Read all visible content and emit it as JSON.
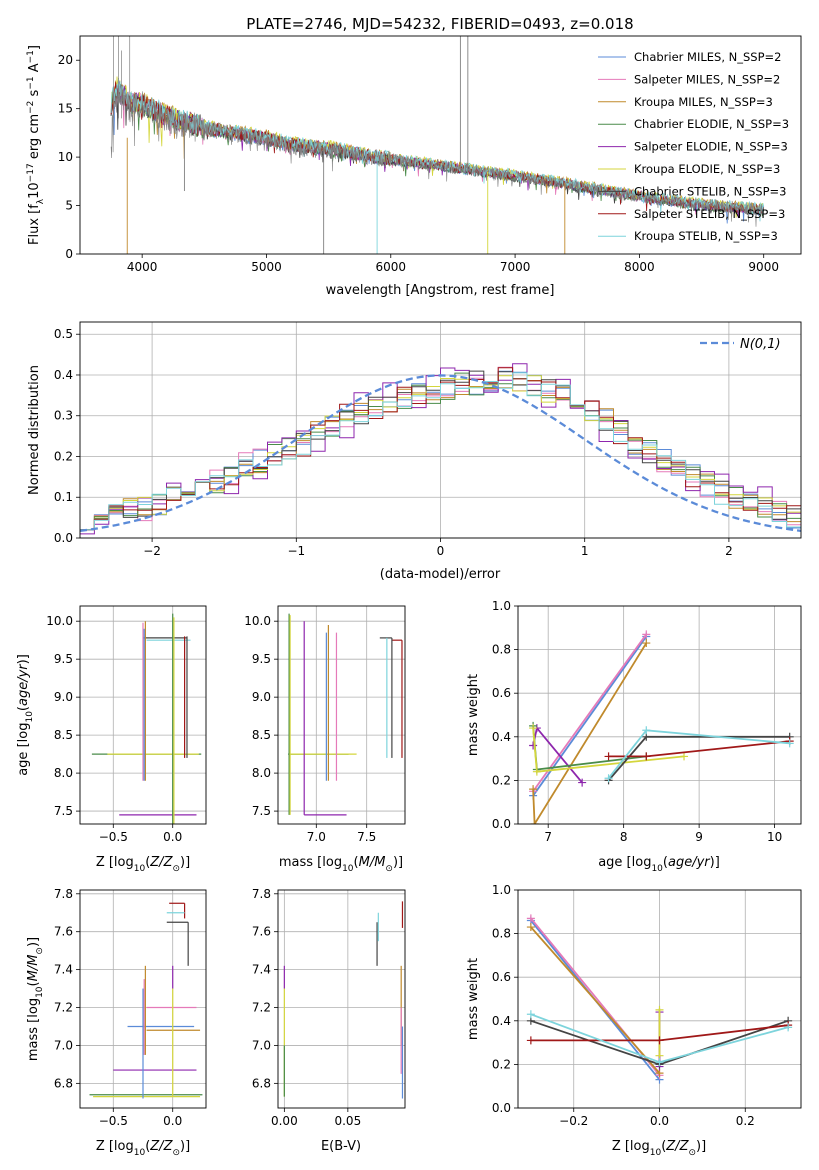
{
  "colors": {
    "grid": "#b0b0b0",
    "gaussian": "#5b8bd8"
  },
  "chart_data": [
    {
      "id": "spectrum",
      "type": "line",
      "title": "PLATE=2746, MJD=54232, FIBERID=0493, z=0.018",
      "xlabel": "wavelength [Angstrom, rest frame]",
      "ylabel": "Flux [f_λ 10^-17 erg cm^-2 s^-1 A^-1]",
      "xlim": [
        3500,
        9300
      ],
      "ylim": [
        0,
        22.5
      ],
      "xticks": [
        4000,
        5000,
        6000,
        7000,
        8000,
        9000
      ],
      "yticks": [
        0,
        5,
        10,
        15,
        20
      ],
      "grid": false,
      "legend_position": "upper right",
      "observed_spectrum": {
        "color": "#808080",
        "x": [
          3750,
          3800,
          3850,
          3900,
          4000,
          4100,
          4200,
          4300,
          4500,
          4700,
          5000,
          5200,
          5500,
          5800,
          6000,
          6300,
          6600,
          7000,
          7400,
          7800,
          8200,
          8600,
          9000
        ],
        "y": [
          12.5,
          16.5,
          16.0,
          15.0,
          15.5,
          14.5,
          14.0,
          13.5,
          13.0,
          12.5,
          11.8,
          11.0,
          10.8,
          10.0,
          9.8,
          9.2,
          8.8,
          8.0,
          7.2,
          6.3,
          5.5,
          5.0,
          4.6
        ]
      },
      "series": [
        {
          "name": "Chabrier MILES, N_SSP=2",
          "color": "#5b8bd8"
        },
        {
          "name": "Salpeter MILES, N_SSP=2",
          "color": "#e57ab9"
        },
        {
          "name": "Kroupa MILES, N_SSP=3",
          "color": "#c08a2c"
        },
        {
          "name": "Chabrier ELODIE, N_SSP=3",
          "color": "#4a8c4a"
        },
        {
          "name": "Salpeter ELODIE, N_SSP=3",
          "color": "#8e26ad"
        },
        {
          "name": "Kroupa ELODIE, N_SSP=3",
          "color": "#d4d63c"
        },
        {
          "name": "Chabrier STELIB, N_SSP=3",
          "color": "#444444"
        },
        {
          "name": "Salpeter STELIB, N_SSP=3",
          "color": "#a01818"
        },
        {
          "name": "Kroupa STELIB, N_SSP=3",
          "color": "#7dd4dc"
        }
      ],
      "model_curve": {
        "x": [
          3750,
          3800,
          3850,
          3900,
          4000,
          4100,
          4200,
          4300,
          4500,
          4700,
          5000,
          5200,
          5500,
          5800,
          6000,
          6300,
          6600,
          7000,
          7400,
          7800,
          8200,
          8600,
          9000
        ],
        "y": [
          15.5,
          17.2,
          16.5,
          15.6,
          15.6,
          14.8,
          14.3,
          13.8,
          13.1,
          12.6,
          12.0,
          11.3,
          10.9,
          10.2,
          9.8,
          9.3,
          8.8,
          8.1,
          7.3,
          6.4,
          5.6,
          5.0,
          4.6
        ]
      }
    },
    {
      "id": "residuals",
      "type": "line",
      "title": "",
      "xlabel": "(data-model)/error",
      "ylabel": "Normed distribution",
      "xlim": [
        -2.5,
        2.5
      ],
      "ylim": [
        0,
        0.53
      ],
      "xticks": [
        -2,
        -1,
        0,
        1,
        2
      ],
      "yticks": [
        0.0,
        0.1,
        0.2,
        0.3,
        0.4,
        0.5
      ],
      "grid": true,
      "legend_position": "upper right",
      "gaussian_label": "N(0,1)",
      "bin_width": 0.1,
      "bin_start": -2.5,
      "base_hist": [
        0.05,
        0.07,
        0.07,
        0.07,
        0.07,
        0.08,
        0.11,
        0.11,
        0.13,
        0.14,
        0.16,
        0.18,
        0.19,
        0.2,
        0.22,
        0.23,
        0.26,
        0.28,
        0.3,
        0.31,
        0.32,
        0.33,
        0.34,
        0.35,
        0.36,
        0.37,
        0.38,
        0.38,
        0.39,
        0.39,
        0.38,
        0.37,
        0.36,
        0.35,
        0.33,
        0.31,
        0.29,
        0.26,
        0.23,
        0.21,
        0.19,
        0.17,
        0.15,
        0.13,
        0.11,
        0.1,
        0.09,
        0.08,
        0.06,
        0.05
      ]
    },
    {
      "id": "age-vs-Z",
      "type": "scatter",
      "title": "",
      "xlabel": "Z [log10(Z/Z⊙)]",
      "ylabel": "age [log10(age/yr)]",
      "xlim": [
        -0.78,
        0.28
      ],
      "ylim": [
        7.33,
        10.2
      ],
      "xticks": [
        -0.5,
        0.0
      ],
      "yticks": [
        7.5,
        8.0,
        8.5,
        9.0,
        9.5,
        10.0
      ],
      "grid": true,
      "segments": [
        {
          "c": "#8e26ad",
          "x": [
            -0.45,
            0.2
          ],
          "y": [
            7.45,
            7.45
          ]
        },
        {
          "c": "#4a8c4a",
          "x": [
            -0.68,
            0.24
          ],
          "y": [
            8.25,
            8.25
          ]
        },
        {
          "c": "#d4d63c",
          "x": [
            -0.55,
            0.22
          ],
          "y": [
            8.25,
            8.25
          ]
        },
        {
          "c": "#444444",
          "x": [
            -0.25,
            0.12
          ],
          "y": [
            9.78,
            9.78
          ]
        },
        {
          "c": "#7dd4dc",
          "x": [
            -0.22,
            0.15
          ],
          "y": [
            9.75,
            9.75
          ]
        },
        {
          "c": "#a01818",
          "x": [
            0.1,
            0.1
          ],
          "y": [
            8.2,
            9.8
          ]
        },
        {
          "c": "#444444",
          "x": [
            0.12,
            0.12
          ],
          "y": [
            8.2,
            9.8
          ]
        },
        {
          "c": "#e57ab9",
          "x": [
            -0.25,
            -0.25
          ],
          "y": [
            7.9,
            9.98
          ]
        },
        {
          "c": "#c08a2c",
          "x": [
            -0.23,
            -0.23
          ],
          "y": [
            7.9,
            10.0
          ]
        },
        {
          "c": "#5b8bd8",
          "x": [
            -0.24,
            -0.24
          ],
          "y": [
            7.9,
            9.9
          ]
        },
        {
          "c": "#4a8c4a",
          "x": [
            0.0,
            0.0
          ],
          "y": [
            7.33,
            10.1
          ]
        },
        {
          "c": "#d4d63c",
          "x": [
            0.01,
            0.01
          ],
          "y": [
            7.33,
            10.05
          ]
        }
      ]
    },
    {
      "id": "age-vs-mass",
      "type": "scatter",
      "title": "",
      "xlabel": "mass [log10(M/M⊙)]",
      "ylabel": "",
      "xlim": [
        6.62,
        7.88
      ],
      "ylim": [
        7.33,
        10.2
      ],
      "xticks": [
        7.0,
        7.5
      ],
      "yticks": [
        7.5,
        8.0,
        8.5,
        9.0,
        9.5,
        10.0
      ],
      "grid": true,
      "segments": [
        {
          "c": "#8e26ad",
          "x": [
            6.88,
            7.3
          ],
          "y": [
            7.45,
            7.45
          ]
        },
        {
          "c": "#4a8c4a",
          "x": [
            6.72,
            7.32
          ],
          "y": [
            8.25,
            8.25
          ]
        },
        {
          "c": "#d4d63c",
          "x": [
            6.73,
            7.4
          ],
          "y": [
            8.25,
            8.25
          ]
        },
        {
          "c": "#444444",
          "x": [
            7.63,
            7.75
          ],
          "y": [
            9.78,
            9.78
          ]
        },
        {
          "c": "#a01818",
          "x": [
            7.75,
            7.85
          ],
          "y": [
            9.75,
            9.75
          ]
        },
        {
          "c": "#a01818",
          "x": [
            7.85,
            7.85
          ],
          "y": [
            8.2,
            9.75
          ]
        },
        {
          "c": "#444444",
          "x": [
            7.75,
            7.75
          ],
          "y": [
            8.2,
            9.78
          ]
        },
        {
          "c": "#7dd4dc",
          "x": [
            7.7,
            7.7
          ],
          "y": [
            8.2,
            9.78
          ]
        },
        {
          "c": "#8e26ad",
          "x": [
            6.88,
            6.88
          ],
          "y": [
            7.45,
            10.0
          ]
        },
        {
          "c": "#4a8c4a",
          "x": [
            6.73,
            6.73
          ],
          "y": [
            7.45,
            10.1
          ]
        },
        {
          "c": "#d4d63c",
          "x": [
            6.74,
            6.74
          ],
          "y": [
            7.45,
            10.08
          ]
        },
        {
          "c": "#c08a2c",
          "x": [
            7.12,
            7.12
          ],
          "y": [
            7.9,
            9.95
          ]
        },
        {
          "c": "#5b8bd8",
          "x": [
            7.1,
            7.1
          ],
          "y": [
            7.9,
            9.85
          ]
        },
        {
          "c": "#e57ab9",
          "x": [
            7.2,
            7.2
          ],
          "y": [
            7.9,
            9.85
          ]
        }
      ]
    },
    {
      "id": "weight-vs-age",
      "type": "line",
      "title": "",
      "xlabel": "age [log10(age/yr)]",
      "ylabel": "mass weight",
      "xlim": [
        6.6,
        10.35
      ],
      "ylim": [
        0,
        1.0
      ],
      "xticks": [
        7,
        8,
        9,
        10
      ],
      "yticks": [
        0.0,
        0.2,
        0.4,
        0.6,
        0.8,
        1.0
      ],
      "grid": true,
      "series": [
        {
          "c": "#5b8bd8",
          "x": [
            6.8,
            8.3
          ],
          "y": [
            0.13,
            0.86
          ]
        },
        {
          "c": "#e57ab9",
          "x": [
            6.8,
            8.3
          ],
          "y": [
            0.15,
            0.87
          ]
        },
        {
          "c": "#c08a2c",
          "x": [
            6.8,
            6.82,
            8.3
          ],
          "y": [
            0.16,
            0.0,
            0.83
          ]
        },
        {
          "c": "#8e26ad",
          "x": [
            6.8,
            6.85,
            7.45
          ],
          "y": [
            0.36,
            0.44,
            0.19
          ]
        },
        {
          "c": "#4a8c4a",
          "x": [
            6.8,
            6.85,
            8.3
          ],
          "y": [
            0.45,
            0.25,
            0.31
          ]
        },
        {
          "c": "#d4d63c",
          "x": [
            6.8,
            6.85,
            8.8
          ],
          "y": [
            0.44,
            0.24,
            0.31
          ]
        },
        {
          "c": "#444444",
          "x": [
            7.8,
            8.3,
            10.2
          ],
          "y": [
            0.2,
            0.4,
            0.4
          ]
        },
        {
          "c": "#a01818",
          "x": [
            7.8,
            8.3,
            10.2
          ],
          "y": [
            0.31,
            0.31,
            0.38
          ]
        },
        {
          "c": "#7dd4dc",
          "x": [
            7.8,
            8.3,
            10.2
          ],
          "y": [
            0.21,
            0.43,
            0.37
          ]
        }
      ]
    },
    {
      "id": "mass-vs-Z",
      "type": "scatter",
      "title": "",
      "xlabel": "Z [log10(Z/Z⊙)]",
      "ylabel": "mass [log10(M/M⊙)]",
      "xlim": [
        -0.78,
        0.28
      ],
      "ylim": [
        6.67,
        7.82
      ],
      "xticks": [
        -0.5,
        0.0
      ],
      "yticks": [
        6.8,
        7.0,
        7.2,
        7.4,
        7.6,
        7.8
      ],
      "grid": true,
      "segments": [
        {
          "c": "#a01818",
          "x": [
            -0.03,
            0.1
          ],
          "y": [
            7.75,
            7.75
          ]
        },
        {
          "c": "#a01818",
          "x": [
            0.1,
            0.1
          ],
          "y": [
            7.67,
            7.75
          ]
        },
        {
          "c": "#7dd4dc",
          "x": [
            -0.05,
            0.1
          ],
          "y": [
            7.7,
            7.7
          ]
        },
        {
          "c": "#444444",
          "x": [
            -0.05,
            0.13
          ],
          "y": [
            7.65,
            7.65
          ]
        },
        {
          "c": "#444444",
          "x": [
            0.13,
            0.13
          ],
          "y": [
            7.42,
            7.65
          ]
        },
        {
          "c": "#e57ab9",
          "x": [
            -0.22,
            0.2
          ],
          "y": [
            7.2,
            7.2
          ]
        },
        {
          "c": "#c08a2c",
          "x": [
            -0.22,
            0.23
          ],
          "y": [
            7.08,
            7.08
          ]
        },
        {
          "c": "#5b8bd8",
          "x": [
            -0.38,
            0.18
          ],
          "y": [
            7.1,
            7.1
          ]
        },
        {
          "c": "#8e26ad",
          "x": [
            -0.5,
            0.2
          ],
          "y": [
            6.87,
            6.87
          ]
        },
        {
          "c": "#4a8c4a",
          "x": [
            -0.7,
            0.25
          ],
          "y": [
            6.74,
            6.74
          ]
        },
        {
          "c": "#d4d63c",
          "x": [
            -0.67,
            0.23
          ],
          "y": [
            6.73,
            6.73
          ]
        },
        {
          "c": "#e57ab9",
          "x": [
            -0.24,
            -0.24
          ],
          "y": [
            6.95,
            7.35
          ]
        },
        {
          "c": "#c08a2c",
          "x": [
            -0.23,
            -0.23
          ],
          "y": [
            6.95,
            7.42
          ]
        },
        {
          "c": "#5b8bd8",
          "x": [
            -0.25,
            -0.25
          ],
          "y": [
            6.72,
            7.3
          ]
        },
        {
          "c": "#8e26ad",
          "x": [
            0.0,
            0.0
          ],
          "y": [
            7.3,
            7.42
          ]
        },
        {
          "c": "#d4d63c",
          "x": [
            0.0,
            0.0
          ],
          "y": [
            6.73,
            7.3
          ]
        }
      ]
    },
    {
      "id": "mass-vs-EBV",
      "type": "scatter",
      "title": "",
      "xlabel": "E(B-V)",
      "ylabel": "",
      "xlim": [
        -0.005,
        0.095
      ],
      "ylim": [
        6.67,
        7.82
      ],
      "xticks": [
        0.0,
        0.05
      ],
      "yticks": [
        6.8,
        7.0,
        7.2,
        7.4,
        7.6,
        7.8
      ],
      "grid": true,
      "segments": [
        {
          "c": "#8e26ad",
          "x": [
            0.0,
            0.0
          ],
          "y": [
            7.3,
            7.42
          ]
        },
        {
          "c": "#d4d63c",
          "x": [
            0.0,
            0.0
          ],
          "y": [
            6.73,
            7.3
          ]
        },
        {
          "c": "#4a8c4a",
          "x": [
            0.0,
            0.0
          ],
          "y": [
            6.73,
            7.0
          ]
        },
        {
          "c": "#444444",
          "x": [
            0.073,
            0.073
          ],
          "y": [
            7.42,
            7.65
          ]
        },
        {
          "c": "#7dd4dc",
          "x": [
            0.074,
            0.074
          ],
          "y": [
            7.55,
            7.7
          ]
        },
        {
          "c": "#a01818",
          "x": [
            0.093,
            0.093
          ],
          "y": [
            7.62,
            7.76
          ]
        },
        {
          "c": "#c08a2c",
          "x": [
            0.092,
            0.092
          ],
          "y": [
            7.0,
            7.42
          ]
        },
        {
          "c": "#e57ab9",
          "x": [
            0.092,
            0.092
          ],
          "y": [
            6.85,
            7.2
          ]
        },
        {
          "c": "#5b8bd8",
          "x": [
            0.093,
            0.093
          ],
          "y": [
            6.72,
            7.1
          ]
        }
      ]
    },
    {
      "id": "weight-vs-Z",
      "type": "line",
      "title": "",
      "xlabel": "Z [log10(Z/Z⊙)]",
      "ylabel": "mass weight",
      "xlim": [
        -0.33,
        0.33
      ],
      "ylim": [
        0,
        1.0
      ],
      "xticks": [
        -0.2,
        0.0,
        0.2
      ],
      "yticks": [
        0.0,
        0.2,
        0.4,
        0.6,
        0.8,
        1.0
      ],
      "grid": true,
      "series": [
        {
          "c": "#5b8bd8",
          "x": [
            -0.3,
            0.0
          ],
          "y": [
            0.86,
            0.13
          ]
        },
        {
          "c": "#e57ab9",
          "x": [
            -0.3,
            0.0
          ],
          "y": [
            0.87,
            0.15
          ]
        },
        {
          "c": "#c08a2c",
          "x": [
            -0.3,
            0.0
          ],
          "y": [
            0.83,
            0.16
          ]
        },
        {
          "c": "#8e26ad",
          "x": [
            0.0,
            0.0
          ],
          "y": [
            0.19,
            0.44
          ]
        },
        {
          "c": "#d4d63c",
          "x": [
            0.0,
            0.0
          ],
          "y": [
            0.24,
            0.45
          ]
        },
        {
          "c": "#444444",
          "x": [
            -0.3,
            0.0,
            0.3
          ],
          "y": [
            0.4,
            0.2,
            0.4
          ]
        },
        {
          "c": "#a01818",
          "x": [
            -0.3,
            0.0,
            0.3
          ],
          "y": [
            0.31,
            0.31,
            0.38
          ]
        },
        {
          "c": "#7dd4dc",
          "x": [
            -0.3,
            0.0,
            0.3
          ],
          "y": [
            0.43,
            0.21,
            0.37
          ]
        }
      ]
    }
  ]
}
